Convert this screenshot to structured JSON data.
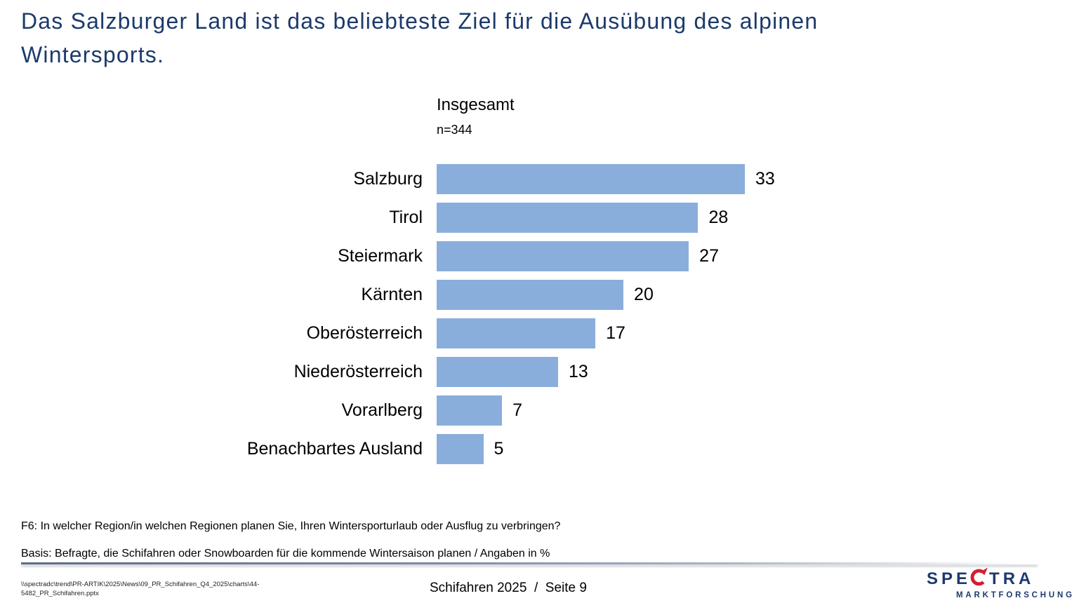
{
  "slide": {
    "title": "Das Salzburger Land ist das beliebteste Ziel für die Ausübung des alpinen Wintersports."
  },
  "chart_data": {
    "type": "bar",
    "orientation": "horizontal",
    "title": "Insgesamt",
    "sample_size": "n=344",
    "categories": [
      "Salzburg",
      "Tirol",
      "Steiermark",
      "Kärnten",
      "Oberösterreich",
      "Niederösterreich",
      "Vorarlberg",
      "Benachbartes Ausland"
    ],
    "values": [
      33,
      28,
      27,
      20,
      17,
      13,
      7,
      5
    ],
    "value_unit": "%",
    "xlim": [
      0,
      35
    ],
    "grid": false,
    "legend": false,
    "bar_color": "#8aaedb"
  },
  "footnotes": {
    "question": "F6: In welcher Region/in welchen Regionen planen Sie, Ihren Wintersporturlaub oder Ausflug zu verbringen?",
    "basis": "Basis: Befragte, die Schifahren oder Snowboarden für die kommende Wintersaison planen / Angaben in %"
  },
  "footer": {
    "path_line1": "\\\\spectradc\\trend\\PR-ARTIK\\2025\\News\\09_PR_Schifahren_Q4_2025\\charts\\44-",
    "path_line2": "5482_PR_Schifahren.pptx",
    "page_info": "Schifahren 2025  /  Seite 9"
  },
  "logo": {
    "brand_pre": "SPE",
    "brand_post": "TRA",
    "subtitle": "MARKTFORSCHUNG",
    "navy": "#1e3a6e",
    "red": "#d2202f"
  },
  "colors": {
    "title_text": "#1b3a6b",
    "body_text": "#000000",
    "divider": "#5e6c88"
  }
}
